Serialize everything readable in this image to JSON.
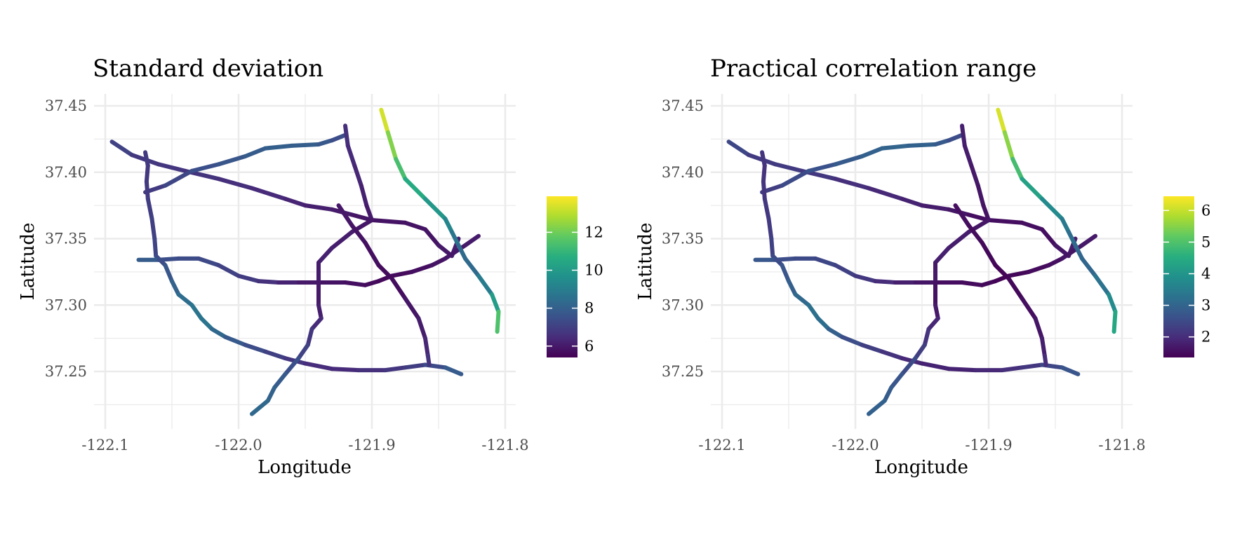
{
  "chart_data": [
    {
      "type": "map",
      "title": "Standard deviation",
      "xlabel": "Longitude",
      "ylabel": "Latitude",
      "xlim": [
        -122.105,
        -121.795
      ],
      "ylim": [
        37.208,
        37.46
      ],
      "x_ticks": [
        -122.1,
        -122.0,
        -121.9,
        -121.8
      ],
      "x_tick_labels": [
        "-122.1",
        "-122.0",
        "-121.9",
        "-121.8"
      ],
      "y_ticks": [
        37.25,
        37.3,
        37.35,
        37.4,
        37.45
      ],
      "y_tick_labels": [
        "37.25",
        "37.30",
        "37.35",
        "37.40",
        "37.45"
      ],
      "grid": true,
      "colorscale": "viridis",
      "legend": {
        "position": "right",
        "min": 5.4,
        "max": 13.9,
        "ticks": [
          6,
          8,
          10,
          12
        ],
        "tick_labels": [
          "6",
          "8",
          "10",
          "12"
        ]
      }
    },
    {
      "type": "map",
      "title": "Practical correlation range",
      "xlabel": "Longitude",
      "ylabel": "Latitude",
      "xlim": [
        -122.105,
        -121.795
      ],
      "ylim": [
        37.208,
        37.46
      ],
      "x_ticks": [
        -122.1,
        -122.0,
        -121.9,
        -121.8
      ],
      "x_tick_labels": [
        "-122.1",
        "-122.0",
        "-121.9",
        "-121.8"
      ],
      "y_ticks": [
        37.25,
        37.3,
        37.35,
        37.4,
        37.45
      ],
      "y_tick_labels": [
        "37.25",
        "37.30",
        "37.35",
        "37.40",
        "37.45"
      ],
      "grid": true,
      "colorscale": "viridis",
      "legend": {
        "position": "right",
        "min": 1.35,
        "max": 6.45,
        "ticks": [
          2,
          3,
          4,
          5,
          6
        ],
        "tick_labels": [
          "2",
          "3",
          "4",
          "5",
          "6"
        ]
      }
    }
  ],
  "road_network": [
    {
      "points": [
        [
          -122.095,
          37.423
        ],
        [
          -122.08,
          37.413
        ],
        [
          -122.06,
          37.406
        ],
        [
          -122.04,
          37.401
        ],
        [
          -122.015,
          37.395
        ],
        [
          -121.99,
          37.388
        ],
        [
          -121.965,
          37.38
        ],
        [
          -121.95,
          37.375
        ],
        [
          -121.93,
          37.372
        ],
        [
          -121.915,
          37.368
        ],
        [
          -121.9,
          37.364
        ],
        [
          -121.875,
          37.362
        ],
        [
          -121.86,
          37.357
        ],
        [
          -121.85,
          37.345
        ],
        [
          -121.84,
          37.337
        ],
        [
          -121.835,
          37.35
        ]
      ],
      "sd": [
        7.3,
        6.9,
        6.7,
        6.8,
        6.6,
        6.5,
        6.4,
        6.2,
        6.1,
        6.0,
        5.8,
        5.9,
        5.8,
        5.9,
        6.1,
        6.2
      ],
      "range": [
        2.6,
        2.3,
        2.2,
        2.3,
        2.1,
        2.0,
        1.9,
        1.8,
        1.7,
        1.6,
        1.5,
        1.6,
        1.5,
        1.6,
        1.7,
        1.8
      ]
    },
    {
      "points": [
        [
          -122.07,
          37.385
        ],
        [
          -122.055,
          37.39
        ],
        [
          -122.035,
          37.401
        ],
        [
          -122.015,
          37.406
        ],
        [
          -121.995,
          37.412
        ],
        [
          -121.98,
          37.418
        ],
        [
          -121.96,
          37.42
        ],
        [
          -121.94,
          37.421
        ],
        [
          -121.93,
          37.424
        ],
        [
          -121.92,
          37.428
        ]
      ],
      "sd": [
        6.8,
        7.0,
        7.4,
        7.6,
        7.8,
        8.0,
        8.0,
        7.9,
        7.6,
        7.2
      ],
      "range": [
        2.2,
        2.4,
        2.6,
        2.7,
        2.9,
        3.0,
        3.0,
        2.9,
        2.7,
        2.4
      ]
    },
    {
      "points": [
        [
          -122.07,
          37.415
        ],
        [
          -122.068,
          37.405
        ],
        [
          -122.069,
          37.393
        ],
        [
          -122.068,
          37.38
        ],
        [
          -122.065,
          37.365
        ],
        [
          -122.063,
          37.35
        ],
        [
          -122.062,
          37.337
        ],
        [
          -122.055,
          37.33
        ],
        [
          -122.05,
          37.318
        ],
        [
          -122.045,
          37.308
        ],
        [
          -122.035,
          37.3
        ],
        [
          -122.028,
          37.29
        ],
        [
          -122.02,
          37.282
        ],
        [
          -122.01,
          37.276
        ],
        [
          -121.995,
          37.27
        ],
        [
          -121.98,
          37.265
        ],
        [
          -121.965,
          37.26
        ],
        [
          -121.95,
          37.256
        ],
        [
          -121.93,
          37.252
        ],
        [
          -121.91,
          37.251
        ],
        [
          -121.89,
          37.251
        ],
        [
          -121.875,
          37.253
        ],
        [
          -121.86,
          37.255
        ],
        [
          -121.845,
          37.253
        ],
        [
          -121.833,
          37.248
        ]
      ],
      "sd": [
        7.0,
        6.8,
        6.8,
        6.9,
        7.0,
        7.1,
        7.2,
        7.5,
        7.9,
        8.3,
        8.6,
        8.8,
        8.6,
        8.0,
        7.6,
        7.2,
        6.9,
        6.6,
        6.4,
        6.5,
        6.7,
        6.8,
        7.1,
        7.6,
        8.1
      ],
      "range": [
        2.2,
        2.1,
        2.1,
        2.2,
        2.2,
        2.3,
        2.4,
        2.6,
        2.8,
        3.0,
        3.2,
        3.3,
        3.1,
        2.7,
        2.4,
        2.2,
        2.0,
        1.9,
        1.8,
        1.9,
        2.0,
        2.1,
        2.3,
        2.6,
        2.8
      ]
    },
    {
      "points": [
        [
          -122.075,
          37.334
        ],
        [
          -122.06,
          37.334
        ],
        [
          -122.045,
          37.335
        ],
        [
          -122.03,
          37.335
        ],
        [
          -122.015,
          37.33
        ],
        [
          -122.0,
          37.322
        ],
        [
          -121.985,
          37.318
        ],
        [
          -121.97,
          37.317
        ],
        [
          -121.955,
          37.317
        ],
        [
          -121.94,
          37.317
        ],
        [
          -121.92,
          37.317
        ],
        [
          -121.905,
          37.315
        ],
        [
          -121.895,
          37.318
        ],
        [
          -121.885,
          37.322
        ],
        [
          -121.87,
          37.325
        ],
        [
          -121.855,
          37.33
        ],
        [
          -121.845,
          37.335
        ],
        [
          -121.83,
          37.345
        ],
        [
          -121.82,
          37.352
        ]
      ],
      "sd": [
        8.2,
        7.6,
        7.3,
        7.4,
        7.2,
        7.0,
        6.8,
        6.4,
        6.1,
        5.9,
        5.8,
        5.7,
        5.6,
        5.6,
        5.7,
        5.8,
        5.9,
        6.0,
        6.1
      ],
      "range": [
        2.9,
        2.6,
        2.5,
        2.5,
        2.4,
        2.3,
        2.1,
        1.9,
        1.7,
        1.6,
        1.5,
        1.5,
        1.4,
        1.4,
        1.5,
        1.5,
        1.6,
        1.7,
        1.7
      ]
    },
    {
      "points": [
        [
          -121.92,
          37.435
        ],
        [
          -121.918,
          37.42
        ],
        [
          -121.913,
          37.405
        ],
        [
          -121.908,
          37.39
        ],
        [
          -121.904,
          37.375
        ],
        [
          -121.9,
          37.364
        ]
      ],
      "sd": [
        6.6,
        6.5,
        6.4,
        6.3,
        6.1,
        6.0
      ],
      "range": [
        1.8,
        1.8,
        1.7,
        1.7,
        1.6,
        1.6
      ]
    },
    {
      "points": [
        [
          -121.9,
          37.364
        ],
        [
          -121.915,
          37.355
        ],
        [
          -121.93,
          37.343
        ],
        [
          -121.94,
          37.332
        ],
        [
          -121.94,
          37.317
        ],
        [
          -121.94,
          37.3
        ],
        [
          -121.938,
          37.29
        ],
        [
          -121.945,
          37.282
        ],
        [
          -121.948,
          37.27
        ],
        [
          -121.955,
          37.26
        ],
        [
          -121.965,
          37.248
        ],
        [
          -121.973,
          37.238
        ],
        [
          -121.978,
          37.228
        ],
        [
          -121.99,
          37.218
        ]
      ],
      "sd": [
        5.9,
        6.0,
        6.2,
        6.2,
        6.0,
        6.0,
        6.3,
        6.6,
        6.9,
        7.3,
        7.7,
        8.0,
        8.2,
        8.4
      ],
      "range": [
        1.6,
        1.7,
        1.8,
        1.8,
        1.6,
        1.6,
        1.8,
        2.0,
        2.2,
        2.4,
        2.6,
        2.8,
        2.9,
        3.0
      ]
    },
    {
      "points": [
        [
          -121.925,
          37.375
        ],
        [
          -121.915,
          37.36
        ],
        [
          -121.905,
          37.347
        ],
        [
          -121.895,
          37.33
        ],
        [
          -121.885,
          37.32
        ],
        [
          -121.875,
          37.305
        ],
        [
          -121.865,
          37.29
        ],
        [
          -121.86,
          37.275
        ],
        [
          -121.858,
          37.262
        ],
        [
          -121.857,
          37.255
        ]
      ],
      "sd": [
        6.0,
        5.9,
        5.8,
        5.7,
        5.6,
        5.8,
        6.0,
        6.2,
        6.5,
        6.8
      ],
      "range": [
        1.6,
        1.5,
        1.5,
        1.4,
        1.4,
        1.5,
        1.6,
        1.7,
        1.9,
        2.1
      ]
    },
    {
      "points": [
        [
          -121.893,
          37.447
        ],
        [
          -121.888,
          37.43
        ],
        [
          -121.882,
          37.41
        ],
        [
          -121.875,
          37.395
        ],
        [
          -121.86,
          37.38
        ],
        [
          -121.845,
          37.365
        ],
        [
          -121.84,
          37.355
        ],
        [
          -121.835,
          37.345
        ],
        [
          -121.83,
          37.335
        ],
        [
          -121.82,
          37.322
        ],
        [
          -121.81,
          37.308
        ],
        [
          -121.805,
          37.295
        ],
        [
          -121.806,
          37.28
        ]
      ],
      "sd": [
        13.9,
        12.8,
        11.8,
        11.0,
        10.2,
        9.6,
        9.0,
        8.5,
        8.2,
        8.5,
        9.4,
        10.8,
        12.2
      ],
      "range": [
        6.4,
        5.9,
        5.2,
        4.6,
        4.0,
        3.6,
        3.3,
        3.1,
        3.0,
        3.1,
        3.5,
        4.1,
        4.7
      ]
    }
  ]
}
